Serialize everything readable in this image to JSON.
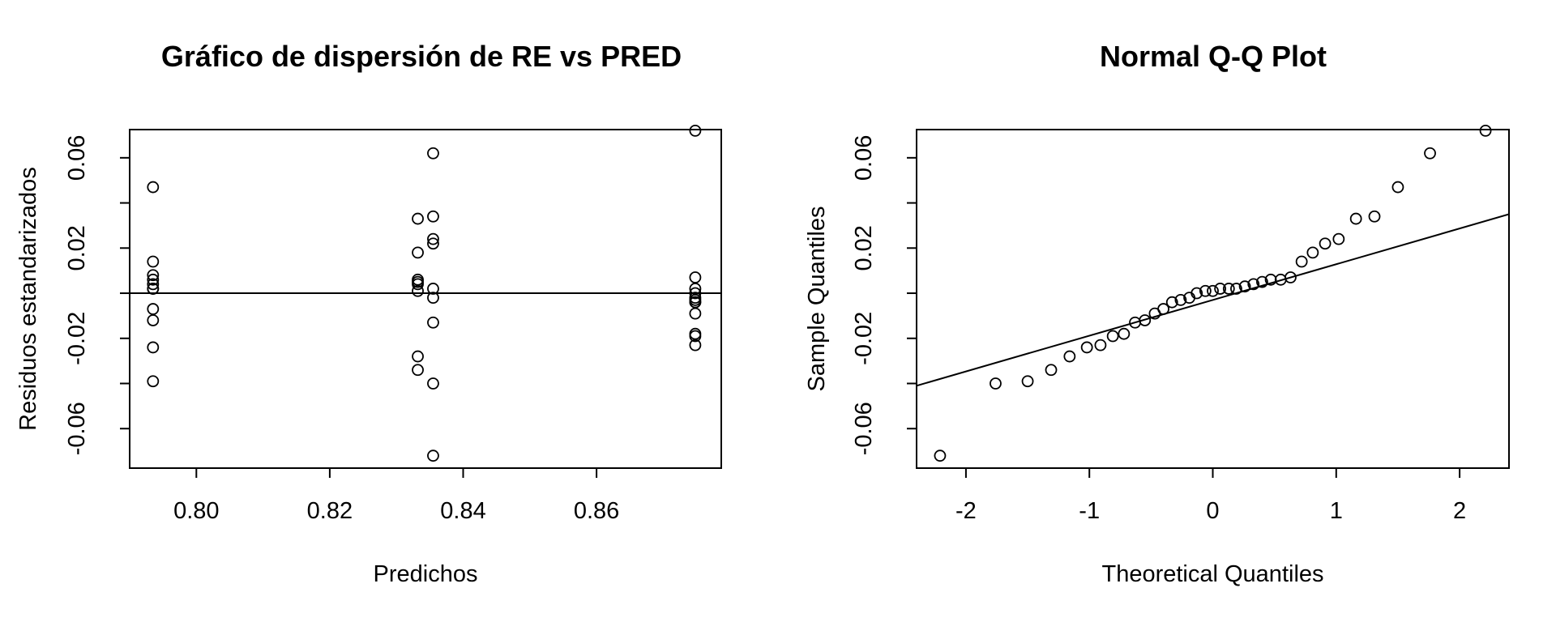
{
  "chart_data": [
    {
      "type": "scatter",
      "title": "Gráfico de dispersión de RE vs PRED",
      "xlabel": "Predichos",
      "ylabel": "Residuos estandarizados",
      "xlim": [
        0.79,
        0.8787
      ],
      "ylim": [
        -0.0775,
        0.0725
      ],
      "xticks": [
        0.8,
        0.82,
        0.84,
        0.86
      ],
      "xtick_labels": [
        "0.80",
        "0.82",
        "0.84",
        "0.86"
      ],
      "yticks": [
        -0.06,
        -0.02,
        0.02,
        0.06
      ],
      "ytick_labels": [
        "-0.06",
        "-0.02",
        "0.02",
        "0.06"
      ],
      "grid": false,
      "reference_line": {
        "type": "horizontal",
        "y": 0
      },
      "x": [
        0.7935,
        0.7935,
        0.7935,
        0.7935,
        0.7935,
        0.7935,
        0.7935,
        0.7935,
        0.7935,
        0.7935,
        0.7935,
        0.8332,
        0.8332,
        0.8332,
        0.8332,
        0.8332,
        0.8332,
        0.8332,
        0.8332,
        0.8355,
        0.8355,
        0.8355,
        0.8355,
        0.8355,
        0.8355,
        0.8355,
        0.8355,
        0.8355,
        0.8748,
        0.8748,
        0.8748,
        0.8748,
        0.8748,
        0.8748,
        0.8748,
        0.8748,
        0.8748,
        0.8748,
        0.8748,
        0.8748
      ],
      "y": [
        0.047,
        0.014,
        0.008,
        0.006,
        0.004,
        0.002,
        -0.007,
        -0.012,
        -0.024,
        -0.039,
        0.002,
        0.033,
        0.018,
        0.006,
        0.005,
        0.001,
        -0.028,
        -0.034,
        0.004,
        0.062,
        0.034,
        0.024,
        0.022,
        0.002,
        -0.002,
        -0.013,
        -0.04,
        -0.072,
        0.072,
        0.007,
        0.002,
        -0.002,
        -0.003,
        -0.004,
        -0.009,
        -0.018,
        -0.019,
        -0.023,
        -0.004,
        0.0
      ]
    },
    {
      "type": "scatter",
      "title": "Normal Q-Q Plot",
      "xlabel": "Theoretical Quantiles",
      "ylabel": "Sample Quantiles",
      "xlim": [
        -2.4,
        2.4
      ],
      "ylim": [
        -0.0775,
        0.0725
      ],
      "xticks": [
        -2,
        -1,
        0,
        1,
        2
      ],
      "xtick_labels": [
        "-2",
        "-1",
        "0",
        "1",
        "2"
      ],
      "yticks": [
        -0.06,
        -0.02,
        0.02,
        0.06
      ],
      "ytick_labels": [
        "-0.06",
        "-0.02",
        "0.02",
        "0.06"
      ],
      "grid": false,
      "reference_line": {
        "type": "line",
        "points": [
          [
            -2.4,
            -0.041
          ],
          [
            2.4,
            0.035
          ]
        ]
      },
      "x": [
        -2.21,
        -1.76,
        -1.5,
        -1.31,
        -1.16,
        -1.02,
        -0.91,
        -0.81,
        -0.72,
        -0.63,
        -0.55,
        -0.47,
        -0.4,
        -0.33,
        -0.26,
        -0.19,
        -0.13,
        -0.06,
        0.0,
        0.06,
        0.13,
        0.19,
        0.26,
        0.33,
        0.4,
        0.47,
        0.55,
        0.63,
        0.72,
        0.81,
        0.91,
        1.02,
        1.16,
        1.31,
        1.5,
        1.76,
        2.21
      ],
      "y": [
        -0.072,
        -0.04,
        -0.039,
        -0.034,
        -0.028,
        -0.024,
        -0.023,
        -0.019,
        -0.018,
        -0.013,
        -0.012,
        -0.009,
        -0.007,
        -0.004,
        -0.003,
        -0.002,
        0.0,
        0.001,
        0.001,
        0.002,
        0.002,
        0.002,
        0.003,
        0.004,
        0.005,
        0.006,
        0.006,
        0.007,
        0.014,
        0.018,
        0.022,
        0.024,
        0.033,
        0.034,
        0.047,
        0.062,
        0.072
      ]
    }
  ]
}
